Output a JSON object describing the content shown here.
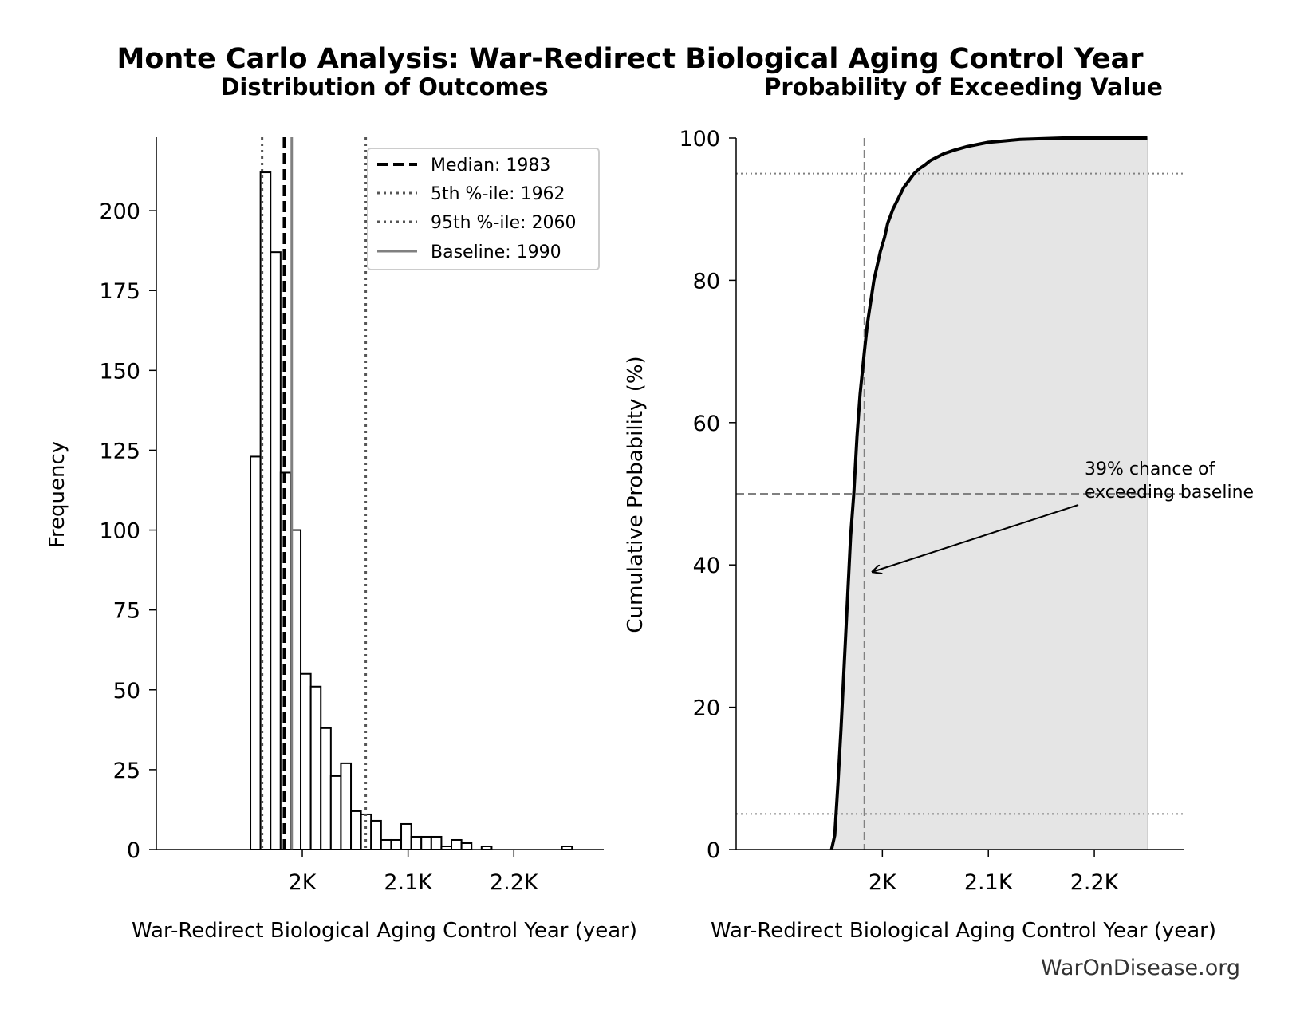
{
  "figure": {
    "title": "Monte Carlo Analysis: War-Redirect Biological Aging Control Year",
    "watermark": "WarOnDisease.org"
  },
  "colors": {
    "bar_fill": "#ffffff",
    "bar_edge": "#000000",
    "median_line": "#000000",
    "percentile_line": "#555555",
    "baseline_line": "#808080",
    "cdf_line": "#000000",
    "cdf_fill": "#e5e5e5",
    "ref_line": "#808080"
  },
  "chart_data": [
    {
      "type": "bar",
      "title": "Distribution of Outcomes",
      "xlabel": "War-Redirect Biological Aging Control Year (year)",
      "ylabel": "Frequency",
      "xlim": [
        1862,
        2285
      ],
      "ylim": [
        0,
        223
      ],
      "xticks": [
        {
          "value": 2000,
          "label": "2K"
        },
        {
          "value": 2100,
          "label": "2.1K"
        },
        {
          "value": 2200,
          "label": "2.2K"
        }
      ],
      "yticks": [
        0,
        25,
        50,
        75,
        100,
        125,
        150,
        175,
        200
      ],
      "bin_width": 9.5,
      "bins": [
        {
          "x": 1951,
          "count": 123
        },
        {
          "x": 1960.5,
          "count": 212
        },
        {
          "x": 1970,
          "count": 187
        },
        {
          "x": 1979.5,
          "count": 118
        },
        {
          "x": 1989,
          "count": 100
        },
        {
          "x": 1998.5,
          "count": 55
        },
        {
          "x": 2008,
          "count": 51
        },
        {
          "x": 2017.5,
          "count": 38
        },
        {
          "x": 2027,
          "count": 23
        },
        {
          "x": 2036.5,
          "count": 27
        },
        {
          "x": 2046,
          "count": 12
        },
        {
          "x": 2055.5,
          "count": 11
        },
        {
          "x": 2065,
          "count": 9
        },
        {
          "x": 2074.5,
          "count": 3
        },
        {
          "x": 2084,
          "count": 3
        },
        {
          "x": 2093.5,
          "count": 8
        },
        {
          "x": 2103,
          "count": 4
        },
        {
          "x": 2112.5,
          "count": 4
        },
        {
          "x": 2122,
          "count": 4
        },
        {
          "x": 2131.5,
          "count": 1
        },
        {
          "x": 2141,
          "count": 3
        },
        {
          "x": 2150.5,
          "count": 2
        },
        {
          "x": 2169.5,
          "count": 1
        },
        {
          "x": 2245.5,
          "count": 1
        }
      ],
      "reference_lines": [
        {
          "name": "Median: 1983",
          "value": 1983,
          "style": "dashed",
          "color_key": "median_line"
        },
        {
          "name": "5th %-ile: 1962",
          "value": 1962,
          "style": "dotted",
          "color_key": "percentile_line"
        },
        {
          "name": "95th %-ile: 2060",
          "value": 2060,
          "style": "dotted",
          "color_key": "percentile_line"
        },
        {
          "name": "Baseline: 1990",
          "value": 1990,
          "style": "solid",
          "color_key": "baseline_line"
        }
      ],
      "legend_position": "top-right"
    },
    {
      "type": "area",
      "title": "Probability of Exceeding Value",
      "xlabel": "War-Redirect Biological Aging Control Year (year)",
      "ylabel": "Cumulative Probability (%)",
      "xlim": [
        1862,
        2285
      ],
      "ylim": [
        0,
        100
      ],
      "xticks": [
        {
          "value": 2000,
          "label": "2K"
        },
        {
          "value": 2100,
          "label": "2.1K"
        },
        {
          "value": 2200,
          "label": "2.2K"
        }
      ],
      "yticks": [
        0,
        20,
        40,
        60,
        80,
        100
      ],
      "series": [
        {
          "x": [
            1952,
            1955,
            1958,
            1961,
            1964,
            1967,
            1970,
            1973,
            1976,
            1979,
            1983,
            1986,
            1989,
            1992,
            1995,
            1998,
            2002,
            2005,
            2010,
            2015,
            2020,
            2025,
            2030,
            2035,
            2040,
            2045,
            2050,
            2058,
            2068,
            2080,
            2090,
            2100,
            2115,
            2130,
            2150,
            2170,
            2200,
            2250
          ],
          "values": [
            0,
            2,
            9,
            17,
            26,
            35,
            44,
            50,
            58,
            64,
            70,
            74,
            77,
            80,
            82,
            84,
            86,
            88,
            90,
            91.5,
            93,
            94,
            95,
            95.7,
            96.2,
            96.8,
            97.2,
            97.8,
            98.3,
            98.8,
            99.1,
            99.4,
            99.6,
            99.8,
            99.9,
            100,
            100,
            100
          ]
        }
      ],
      "reference_lines": [
        {
          "axis": "x",
          "value": 1983,
          "style": "dashed"
        },
        {
          "axis": "y",
          "value": 50,
          "style": "dashed"
        },
        {
          "axis": "y",
          "value": 5,
          "style": "dotted"
        },
        {
          "axis": "y",
          "value": 95,
          "style": "dotted"
        }
      ],
      "annotation": {
        "text_lines": [
          "39% chance of",
          "exceeding baseline"
        ],
        "arrow_to": {
          "x": 1990,
          "y": 39
        }
      }
    }
  ]
}
